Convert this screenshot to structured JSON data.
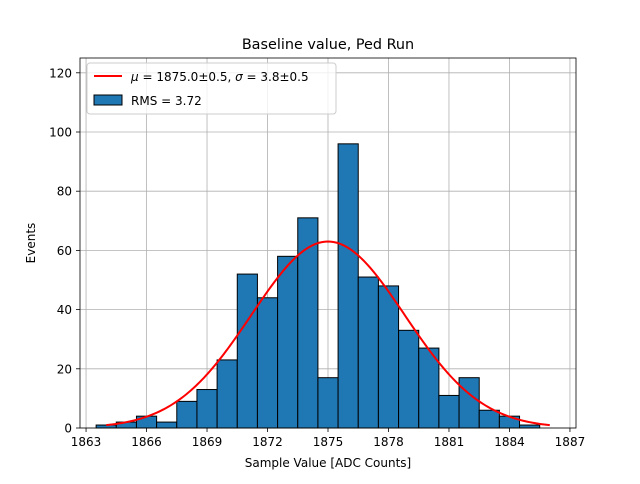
{
  "chart_data": {
    "type": "bar",
    "title": "Baseline value, Ped Run",
    "xlabel": "Sample Value [ADC Counts]",
    "ylabel": "Events",
    "xlim": [
      1862.7,
      1887.3
    ],
    "ylim": [
      0,
      125
    ],
    "xticks": [
      1863,
      1866,
      1869,
      1872,
      1875,
      1878,
      1881,
      1884,
      1887
    ],
    "yticks": [
      0,
      20,
      40,
      60,
      80,
      100,
      120
    ],
    "grid": true,
    "bin_width": 1,
    "bins": [
      {
        "x": 1864,
        "count": 1
      },
      {
        "x": 1865,
        "count": 2
      },
      {
        "x": 1866,
        "count": 4
      },
      {
        "x": 1867,
        "count": 2
      },
      {
        "x": 1868,
        "count": 9
      },
      {
        "x": 1869,
        "count": 13
      },
      {
        "x": 1870,
        "count": 23
      },
      {
        "x": 1871,
        "count": 52
      },
      {
        "x": 1872,
        "count": 44
      },
      {
        "x": 1873,
        "count": 58
      },
      {
        "x": 1874,
        "count": 71
      },
      {
        "x": 1875,
        "count": 17
      },
      {
        "x": 1876,
        "count": 96
      },
      {
        "x": 1877,
        "count": 51
      },
      {
        "x": 1878,
        "count": 48
      },
      {
        "x": 1879,
        "count": 33
      },
      {
        "x": 1880,
        "count": 27
      },
      {
        "x": 1881,
        "count": 11
      },
      {
        "x": 1882,
        "count": 17
      },
      {
        "x": 1883,
        "count": 6
      },
      {
        "x": 1884,
        "count": 4
      },
      {
        "x": 1885,
        "count": 1
      }
    ],
    "fit": {
      "mu": 1875.0,
      "sigma": 3.8,
      "amplitude": 63,
      "x_range": [
        1864,
        1886
      ]
    },
    "legend": {
      "placement": "top-left",
      "fit_prefix_mu": "μ",
      "fit_eq": " = ",
      "fit_mu_val": "1875.0±0.5, ",
      "fit_prefix_sigma": "σ",
      "fit_sigma_val": "3.8±0.5",
      "hist_label": "RMS = 3.72"
    },
    "colors": {
      "bar": "#1f77b4",
      "bar_edge": "#000000",
      "fit": "#ff0000",
      "grid": "#b0b0b0"
    }
  }
}
